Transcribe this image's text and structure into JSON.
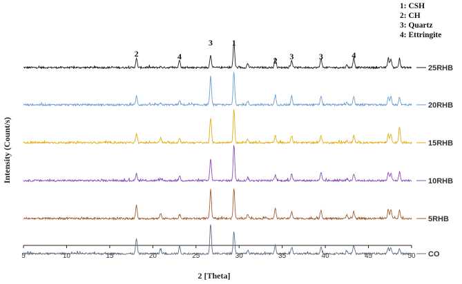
{
  "chart_data": {
    "type": "line",
    "xlabel": "2 [Theta]",
    "ylabel": "Intensity (Count/s)",
    "xlim": [
      5,
      50
    ],
    "xticks": [
      5,
      10,
      15,
      20,
      25,
      30,
      35,
      40,
      45,
      50
    ],
    "stacked": true,
    "grid": false,
    "legend": {
      "placement": "top-right",
      "entries": [
        "1: CSH",
        "2: CH",
        "3: Quartz",
        "4: Ettringite"
      ]
    },
    "peak_labels": [
      {
        "label": "2",
        "x": 18.1
      },
      {
        "label": "4",
        "x": 23.1
      },
      {
        "label": "3",
        "x": 26.7
      },
      {
        "label": "1",
        "x": 29.4
      },
      {
        "label": "2",
        "x": 34.2
      },
      {
        "label": "3",
        "x": 36.1
      },
      {
        "label": "3",
        "x": 39.5
      },
      {
        "label": "4",
        "x": 43.3
      }
    ],
    "peak_positions": [
      18.1,
      20.9,
      23.1,
      26.7,
      29.4,
      31.0,
      34.2,
      36.1,
      39.5,
      42.5,
      43.3,
      47.3,
      47.6,
      48.6
    ],
    "series": [
      {
        "name": "25RHB",
        "color": "#1a1a1a",
        "intensities": [
          0.22,
          0.02,
          0.2,
          0.32,
          0.62,
          0.1,
          0.26,
          0.18,
          0.24,
          0.06,
          0.26,
          0.24,
          0.22,
          0.22
        ]
      },
      {
        "name": "20RHB",
        "color": "#6a9ccf",
        "intensities": [
          0.22,
          0.03,
          0.1,
          0.72,
          0.82,
          0.08,
          0.24,
          0.22,
          0.22,
          0.05,
          0.22,
          0.2,
          0.2,
          0.2
        ]
      },
      {
        "name": "15RHB",
        "color": "#e3ac12",
        "intensities": [
          0.22,
          0.12,
          0.12,
          0.62,
          0.82,
          0.08,
          0.18,
          0.18,
          0.18,
          0.05,
          0.18,
          0.22,
          0.22,
          0.4
        ]
      },
      {
        "name": "10RHB",
        "color": "#8a4bb5",
        "intensities": [
          0.18,
          0.05,
          0.12,
          0.55,
          0.9,
          0.08,
          0.14,
          0.18,
          0.2,
          0.05,
          0.18,
          0.2,
          0.18,
          0.22
        ]
      },
      {
        "name": "5RHB",
        "color": "#a25a2e",
        "intensities": [
          0.32,
          0.12,
          0.1,
          0.72,
          0.75,
          0.12,
          0.25,
          0.18,
          0.22,
          0.1,
          0.18,
          0.24,
          0.24,
          0.2
        ]
      },
      {
        "name": "CO",
        "color": "#596a80",
        "intensities": [
          0.38,
          0.12,
          0.18,
          0.75,
          0.55,
          0.08,
          0.22,
          0.16,
          0.18,
          0.05,
          0.22,
          0.14,
          0.14,
          0.12
        ]
      }
    ]
  }
}
